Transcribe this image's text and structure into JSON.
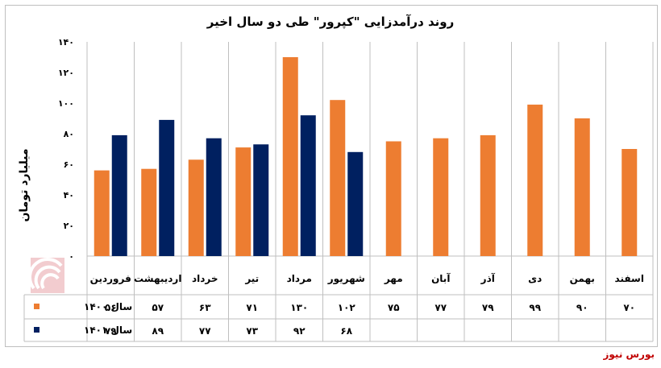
{
  "chart_data": {
    "type": "bar",
    "title": "روند درآمدزایی \"کپرور\" طی دو سال اخیر",
    "ylabel": "میلیارد تومان",
    "xlabel": "",
    "ylim": [
      0,
      140
    ],
    "yticks": [
      0,
      20,
      40,
      60,
      80,
      100,
      120,
      140
    ],
    "ytick_labels": [
      "۰",
      "۲۰",
      "۴۰",
      "۶۰",
      "۸۰",
      "۱۰۰",
      "۱۲۰",
      "۱۴۰"
    ],
    "grid": true,
    "legend": "data-table-left",
    "categories": [
      "فروردین",
      "اردیبهشت",
      "خرداد",
      "تیر",
      "مرداد",
      "شهریور",
      "مهر",
      "آبان",
      "آذر",
      "دی",
      "بهمن",
      "اسفند"
    ],
    "series": [
      {
        "name": "سال ۱۴۰۰",
        "color": "#ed7d31",
        "values": [
          56,
          57,
          63,
          71,
          130,
          102,
          75,
          77,
          79,
          99,
          90,
          70
        ],
        "labels": [
          "۵۶",
          "۵۷",
          "۶۳",
          "۷۱",
          "۱۳۰",
          "۱۰۲",
          "۷۵",
          "۷۷",
          "۷۹",
          "۹۹",
          "۹۰",
          "۷۰"
        ]
      },
      {
        "name": "سال ۱۴۰۱",
        "color": "#002060",
        "values": [
          79,
          89,
          77,
          73,
          92,
          68,
          null,
          null,
          null,
          null,
          null,
          null
        ],
        "labels": [
          "۷۹",
          "۸۹",
          "۷۷",
          "۷۳",
          "۹۲",
          "۶۸",
          "",
          "",
          "",
          "",
          "",
          ""
        ]
      }
    ]
  },
  "logo_text": "بورس نیوز",
  "source": "بورس نیوز"
}
